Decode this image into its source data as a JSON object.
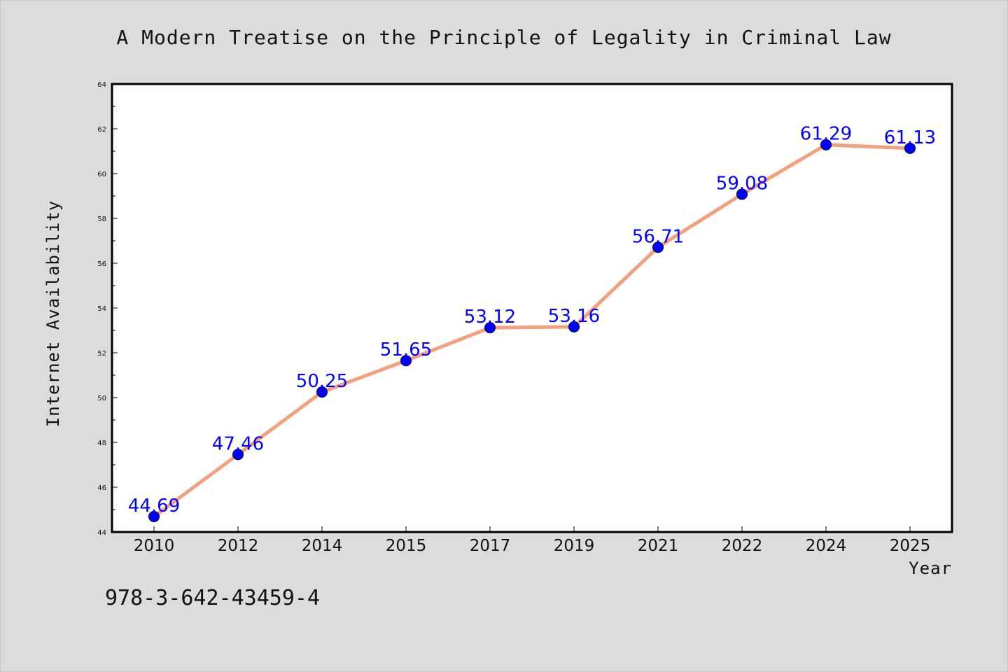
{
  "chart_data": {
    "type": "line",
    "title": "A Modern Treatise on the Principle of Legality in Criminal Law",
    "xlabel": "Year",
    "ylabel": "Internet Availability",
    "categories": [
      "2010",
      "2012",
      "2014",
      "2015",
      "2017",
      "2019",
      "2021",
      "2022",
      "2024",
      "2025"
    ],
    "series": [
      {
        "values": [
          44.69,
          47.46,
          50.25,
          51.65,
          53.12,
          53.16,
          56.71,
          59.08,
          61.29,
          61.13
        ],
        "line_color": "#f4a07c",
        "marker_color": "#0000ff"
      }
    ],
    "data_labels": [
      "44.69",
      "47.46",
      "50.25",
      "51.65",
      "53.12",
      "53.16",
      "56.71",
      "59.08",
      "61.29",
      "61.13"
    ],
    "ylim": [
      44,
      64
    ],
    "yticks": [
      44,
      46,
      48,
      50,
      52,
      54,
      56,
      58,
      60,
      62,
      64
    ],
    "ytick_labels": [
      "44",
      "46",
      "48",
      "50",
      "52",
      "54",
      "56",
      "58",
      "60",
      "62",
      "64"
    ],
    "grid": false,
    "legend": "none"
  },
  "footer": {
    "isbn": "978-3-642-43459-4"
  },
  "colors": {
    "background": "#dcdcdc",
    "plot_background": "#ffffff",
    "line": "#f4a07c",
    "marker": "#0000ff",
    "data_label": "#0000ff"
  }
}
